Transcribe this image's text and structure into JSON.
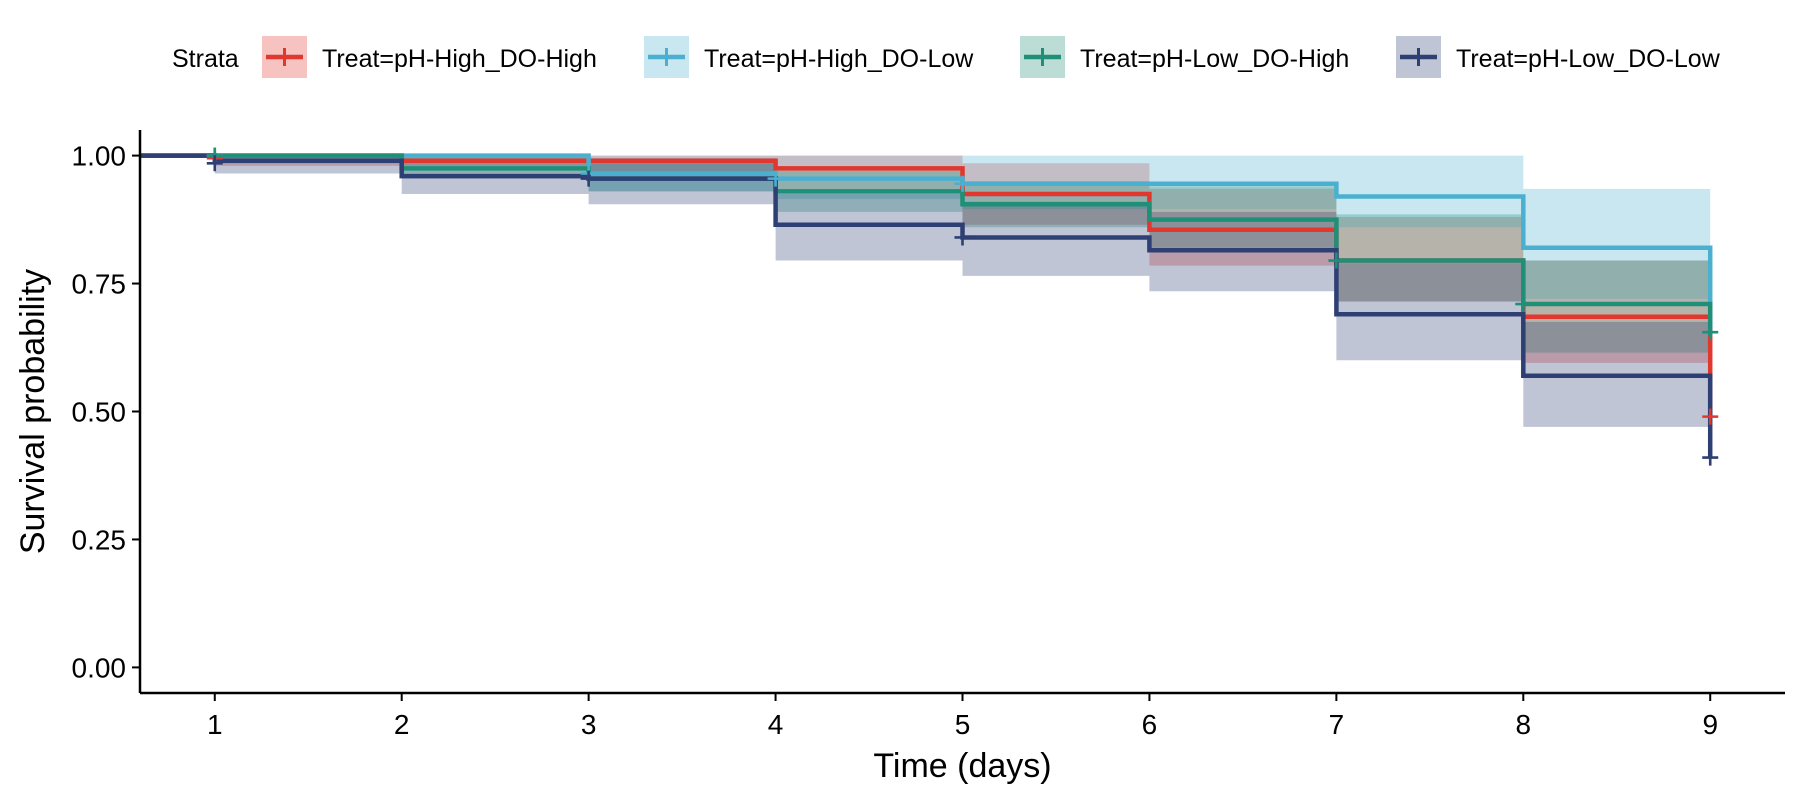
{
  "chart_data": {
    "type": "line",
    "title": "",
    "xlabel": "Time (days)",
    "ylabel": "Survival probability",
    "xlim": [
      0.6,
      9.4
    ],
    "ylim": [
      -0.05,
      1.05
    ],
    "x_ticks": [
      1,
      2,
      3,
      4,
      5,
      6,
      7,
      8,
      9
    ],
    "x_tick_labels": [
      "1",
      "2",
      "3",
      "4",
      "5",
      "6",
      "7",
      "8",
      "9"
    ],
    "y_ticks": [
      0,
      0.25,
      0.5,
      0.75,
      1.0
    ],
    "y_tick_labels": [
      "0.00",
      "0.25",
      "0.50",
      "0.75",
      "1.00"
    ],
    "grid": false,
    "legend_title": "Strata",
    "legend_position": "top",
    "series": [
      {
        "name": "Treat=pH-High_DO-High",
        "color": "#e0382e",
        "steps": [
          [
            0.6,
            1.0
          ],
          [
            2,
            0.99
          ],
          [
            3,
            0.99
          ],
          [
            4,
            0.975
          ],
          [
            5,
            0.925
          ],
          [
            6,
            0.855
          ],
          [
            7,
            0.795
          ],
          [
            8,
            0.685
          ],
          [
            9,
            0.49
          ]
        ],
        "end_x": 9,
        "ci_steps": [
          [
            0.6,
            1.0,
            1.0
          ],
          [
            1,
            0.98,
            1.0
          ],
          [
            3,
            0.965,
            1.0
          ],
          [
            4,
            0.93,
            1.0
          ],
          [
            5,
            0.865,
            0.985
          ],
          [
            6,
            0.785,
            0.935
          ],
          [
            7,
            0.715,
            0.88
          ],
          [
            8,
            0.595,
            0.795
          ],
          [
            9,
            0.595,
            0.795
          ]
        ],
        "censor": [
          [
            1,
            0.995
          ],
          [
            9,
            0.49
          ]
        ]
      },
      {
        "name": "Treat=pH-High_DO-Low",
        "color": "#4bb0d0",
        "steps": [
          [
            0.6,
            1.0
          ],
          [
            3,
            0.965
          ],
          [
            4,
            0.955
          ],
          [
            5,
            0.945
          ],
          [
            7,
            0.92
          ],
          [
            8,
            0.82
          ],
          [
            9,
            0.65
          ]
        ],
        "end_x": 9,
        "ci_steps": [
          [
            0.6,
            1.0,
            1.0
          ],
          [
            1,
            0.99,
            1.0
          ],
          [
            3,
            0.93,
            1.0
          ],
          [
            4,
            0.915,
            1.0
          ],
          [
            5,
            0.895,
            1.0
          ],
          [
            7,
            0.86,
            1.0
          ],
          [
            8,
            0.72,
            0.935
          ],
          [
            9,
            0.72,
            0.935
          ]
        ],
        "censor": [
          [
            1,
            1.0
          ],
          [
            3,
            0.965
          ],
          [
            4,
            0.955
          ],
          [
            5,
            0.945
          ]
        ]
      },
      {
        "name": "Treat=pH-Low_DO-High",
        "color": "#1f8f78",
        "steps": [
          [
            0.6,
            1.0
          ],
          [
            2,
            0.975
          ],
          [
            3,
            0.955
          ],
          [
            4,
            0.93
          ],
          [
            5,
            0.905
          ],
          [
            6,
            0.875
          ],
          [
            7,
            0.795
          ],
          [
            8,
            0.71
          ],
          [
            9,
            0.65
          ]
        ],
        "end_x": 9,
        "ci_steps": [
          [
            0.6,
            1.0,
            1.0
          ],
          [
            1,
            0.985,
            1.0
          ],
          [
            2,
            0.955,
            1.0
          ],
          [
            3,
            0.93,
            0.985
          ],
          [
            4,
            0.89,
            0.97
          ],
          [
            5,
            0.86,
            0.95
          ],
          [
            6,
            0.82,
            0.94
          ],
          [
            7,
            0.715,
            0.885
          ],
          [
            8,
            0.615,
            0.795
          ],
          [
            9,
            0.615,
            0.795
          ]
        ],
        "censor": [
          [
            1,
            1.0
          ],
          [
            7,
            0.795
          ],
          [
            8,
            0.71
          ],
          [
            9,
            0.655
          ]
        ]
      },
      {
        "name": "Treat=pH-Low_DO-Low",
        "color": "#2e3f73",
        "steps": [
          [
            0.6,
            1.0
          ],
          [
            1,
            0.99
          ],
          [
            2,
            0.96
          ],
          [
            3,
            0.955
          ],
          [
            4,
            0.865
          ],
          [
            5,
            0.84
          ],
          [
            6,
            0.815
          ],
          [
            7,
            0.69
          ],
          [
            8,
            0.57
          ],
          [
            9,
            0.41
          ]
        ],
        "end_x": 9,
        "ci_steps": [
          [
            0.6,
            1.0,
            1.0
          ],
          [
            1,
            0.965,
            1.0
          ],
          [
            2,
            0.925,
            0.995
          ],
          [
            3,
            0.905,
            0.995
          ],
          [
            4,
            0.795,
            0.925
          ],
          [
            5,
            0.765,
            0.91
          ],
          [
            6,
            0.735,
            0.89
          ],
          [
            7,
            0.6,
            0.79
          ],
          [
            8,
            0.47,
            0.675
          ],
          [
            9,
            0.47,
            0.675
          ]
        ],
        "censor": [
          [
            1,
            0.985
          ],
          [
            3,
            0.955
          ],
          [
            5,
            0.84
          ],
          [
            9,
            0.41
          ]
        ]
      }
    ]
  }
}
